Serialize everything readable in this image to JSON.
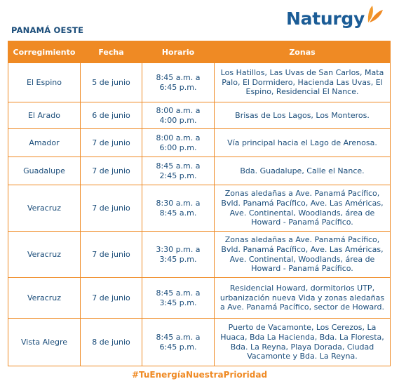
{
  "brand": {
    "name": "Naturgy"
  },
  "region_title": "PANAMÁ OESTE",
  "table": {
    "headers": [
      "Corregimiento",
      "Fecha",
      "Horario",
      "Zonas"
    ],
    "rows": [
      {
        "corregimiento": "El Espino",
        "fecha": "5 de junio",
        "horario": "8:45 a.m. a\n6:45 p.m.",
        "zonas": "Los Hatillos, Las Uvas de San Carlos, Mata Palo, El Dormidero, Hacienda Las Uvas, El Espino, Residencial El Nance."
      },
      {
        "corregimiento": "El Arado",
        "fecha": "6 de junio",
        "horario": "8:00 a.m. a\n4:00 p.m.",
        "zonas": "Brisas de Los Lagos, Los Monteros."
      },
      {
        "corregimiento": "Amador",
        "fecha": "7 de junio",
        "horario": "8:00 a.m. a\n6:00 p.m.",
        "zonas": "Vía principal hacia el Lago de Arenosa."
      },
      {
        "corregimiento": "Guadalupe",
        "fecha": "7 de junio",
        "horario": "8:45 a.m. a\n2:45 p.m.",
        "zonas": "Bda. Guadalupe, Calle el Nance."
      },
      {
        "corregimiento": "Veracruz",
        "fecha": "7 de junio",
        "horario": "8:30 a.m. a\n8:45 a.m.",
        "zonas": "Zonas aledañas a Ave. Panamá Pacífico, Bvld. Panamá Pacífico, Ave. Las Américas, Ave. Continental, Woodlands, área de Howard - Panamá Pacífico."
      },
      {
        "corregimiento": "Veracruz",
        "fecha": "7 de junio",
        "horario": "3:30 p.m. a\n3:45 p.m.",
        "zonas": "Zonas aledañas a Ave. Panamá Pacífico, Bvld. Panamá Pacífico, Ave. Las Américas, Ave. Continental, Woodlands, área de Howard - Panamá Pacífico."
      },
      {
        "corregimiento": "Veracruz",
        "fecha": "7 de junio",
        "horario": "8:45 a.m. a\n3:45 p.m.",
        "zonas": "Residencial Howard, dormitorios UTP, urbanización nueva Vida y zonas aledañas a Ave. Panamá Pacífico, sector de Howard."
      },
      {
        "corregimiento": "Vista Alegre",
        "fecha": "8 de junio",
        "horario": "8:45 a.m. a\n6:45 p.m.",
        "zonas": "Puerto de Vacamonte, Los Cerezos, La Huaca, Bda La Hacienda, Bda. La Floresta, Bda. La Reyna, Playa Dorada, Ciudad Vacamonte y Bda. La Reyna."
      }
    ]
  },
  "hashtag": "#TuEnergíaNuestraPrioridad",
  "colors": {
    "accent": "#ef8a24",
    "text": "#1b4d7a",
    "brand_blue": "#1b5c96"
  }
}
